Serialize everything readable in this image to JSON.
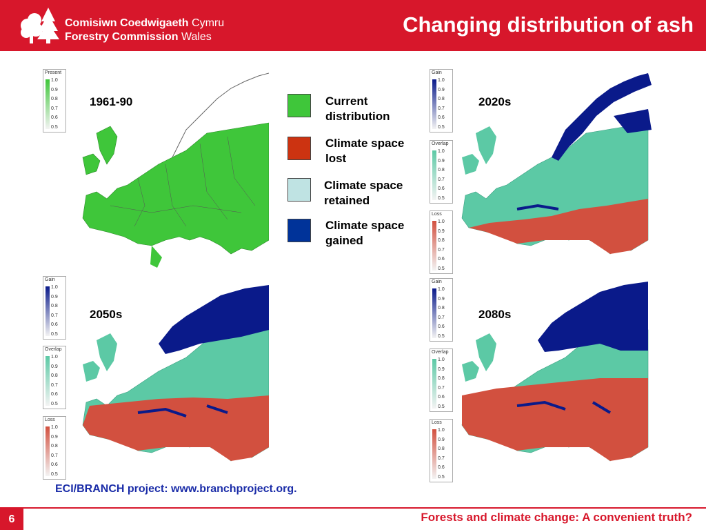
{
  "header": {
    "logo_line1_bold": "Comisiwn Coedwigaeth",
    "logo_line1_light": "Cymru",
    "logo_line2_bold": "Forestry Commission",
    "logo_line2_light": "Wales",
    "logo_icon": "tree-icon",
    "title": "Changing distribution of ash"
  },
  "colors": {
    "brand_red": "#d7172b",
    "current": "#3fc63a",
    "lost": "#cc3311",
    "retained": "#bfe3e3",
    "gained": "#003399",
    "citation_blue": "#1a2ca8"
  },
  "maps": [
    {
      "label": "1961-90",
      "legends": [
        {
          "title": "Present",
          "ticks": [
            "1.0",
            "0.9",
            "0.8",
            "0.7",
            "0.6",
            "0.5"
          ],
          "color": "#3fc63a"
        }
      ]
    },
    {
      "label": "2020s",
      "legends": [
        {
          "title": "Gain",
          "ticks": [
            "1.0",
            "0.9",
            "0.8",
            "0.7",
            "0.6",
            "0.5"
          ],
          "color": "#0a1a8a"
        },
        {
          "title": "Overlap",
          "ticks": [
            "1.0",
            "0.9",
            "0.8",
            "0.7",
            "0.6",
            "0.5"
          ],
          "color": "#5cc9a5"
        },
        {
          "title": "Loss",
          "ticks": [
            "1.0",
            "0.9",
            "0.8",
            "0.7",
            "0.6",
            "0.5"
          ],
          "color": "#d2503f"
        }
      ]
    },
    {
      "label": "2050s",
      "legends": [
        {
          "title": "Gain",
          "ticks": [
            "1.0",
            "0.9",
            "0.8",
            "0.7",
            "0.6",
            "0.5"
          ],
          "color": "#0a1a8a"
        },
        {
          "title": "Overlap",
          "ticks": [
            "1.0",
            "0.9",
            "0.8",
            "0.7",
            "0.6",
            "0.5"
          ],
          "color": "#5cc9a5"
        },
        {
          "title": "Loss",
          "ticks": [
            "1.0",
            "0.9",
            "0.8",
            "0.7",
            "0.6",
            "0.5"
          ],
          "color": "#d2503f"
        }
      ]
    },
    {
      "label": "2080s",
      "legends": [
        {
          "title": "Gain",
          "ticks": [
            "1.0",
            "0.9",
            "0.8",
            "0.7",
            "0.6",
            "0.5"
          ],
          "color": "#0a1a8a"
        },
        {
          "title": "Overlap",
          "ticks": [
            "1.0",
            "0.9",
            "0.8",
            "0.7",
            "0.6",
            "0.5"
          ],
          "color": "#5cc9a5"
        },
        {
          "title": "Loss",
          "ticks": [
            "1.0",
            "0.9",
            "0.8",
            "0.7",
            "0.6",
            "0.5"
          ],
          "color": "#d2503f"
        }
      ]
    }
  ],
  "key": [
    {
      "line1": "Current",
      "line2": "distribution",
      "color": "#3fc63a"
    },
    {
      "line1": "Climate space",
      "line2": "lost",
      "color": "#cc3311"
    },
    {
      "line1": "Climate space",
      "line2": "retained",
      "color": "#bfe3e3"
    },
    {
      "line1": "Climate space",
      "line2": "gained",
      "color": "#003399"
    }
  ],
  "citation": "ECI/BRANCH project: www.branchproject.org.",
  "footer": {
    "page_number": "6",
    "text": "Forests and climate change: A convenient truth?"
  }
}
